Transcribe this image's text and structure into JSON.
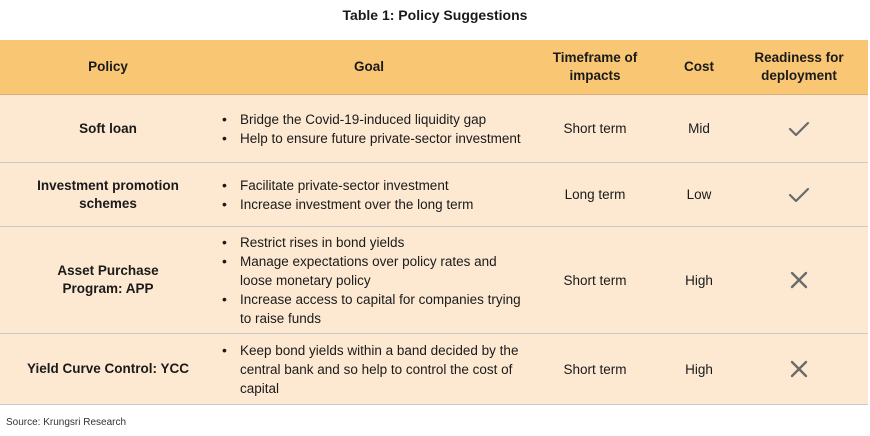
{
  "title": "Table 1: Policy Suggestions",
  "headers": {
    "policy": "Policy",
    "goal": "Goal",
    "timeframe": "Timeframe of impacts",
    "cost": "Cost",
    "readiness": "Readiness for deployment"
  },
  "rows": [
    {
      "policy": "Soft loan",
      "goals": [
        "Bridge the Covid-19-induced liquidity gap",
        "Help to ensure future private-sector investment"
      ],
      "timeframe": "Short term",
      "cost": "Mid",
      "readiness": "check-icon"
    },
    {
      "policy": "Investment promotion schemes",
      "goals": [
        "Facilitate private-sector investment",
        "Increase investment over the long term"
      ],
      "timeframe": "Long term",
      "cost": "Low",
      "readiness": "check-icon"
    },
    {
      "policy": "Asset Purchase Program: APP",
      "goals": [
        "Restrict rises in bond yields",
        "Manage expectations over policy rates and loose monetary policy",
        "Increase access to capital for companies trying to raise funds"
      ],
      "timeframe": "Short term",
      "cost": "High",
      "readiness": "cross-icon"
    },
    {
      "policy": "Yield Curve Control: YCC",
      "goals": [
        "Keep bond yields within a band decided by the central bank and so help to control the cost of capital"
      ],
      "timeframe": "Short term",
      "cost": "High",
      "readiness": "cross-icon"
    }
  ],
  "source": "Source: Krungsri Research",
  "colors": {
    "header_bg": "#f9c674",
    "row_bg": "#fde9d2",
    "icon": "#6b6b6b"
  }
}
